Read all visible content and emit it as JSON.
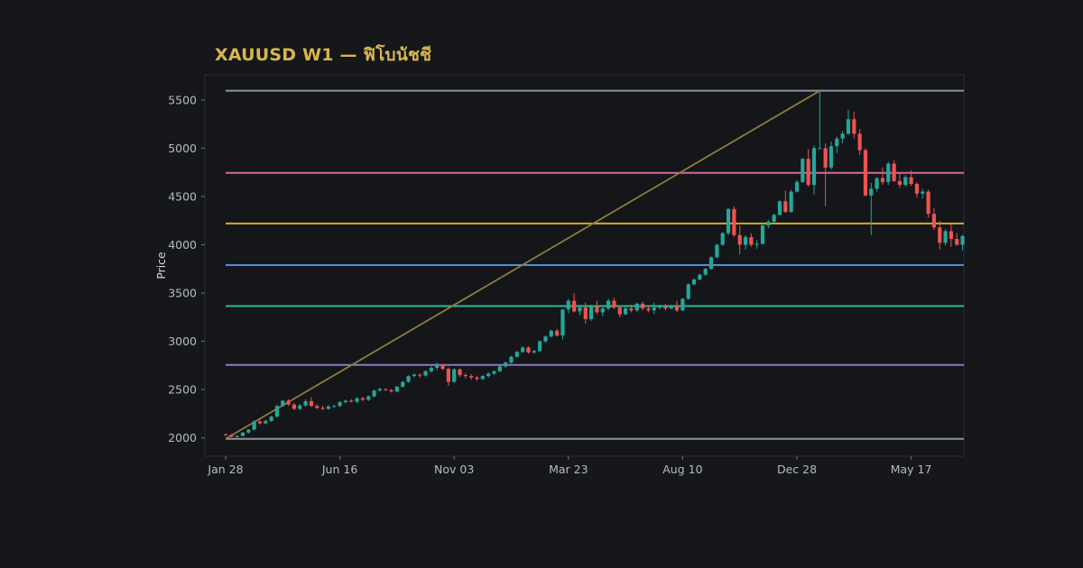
{
  "colors": {
    "background": "#15171b",
    "plot_background": "#14161a",
    "plot_border": "#2a2e37",
    "title": "#d9b64c",
    "up": "#26a69a",
    "down": "#ef5350",
    "diagonal": "#8f7c3c"
  },
  "chart_data": {
    "type": "candlestick",
    "title": "XAUUSD W1 — ฟิโบนัชชี",
    "xlabel": "",
    "ylabel": "Price",
    "ylim": [
      1810,
      5760
    ],
    "yticks": [
      2000,
      2500,
      3000,
      3500,
      4000,
      4500,
      5000,
      5500
    ],
    "xticks": [
      {
        "label": "Jan 28",
        "index": 0
      },
      {
        "label": "Jun 16",
        "index": 20
      },
      {
        "label": "Nov 03",
        "index": 40
      },
      {
        "label": "Mar 23",
        "index": 60
      },
      {
        "label": "Aug 10",
        "index": 80
      },
      {
        "label": "Dec 28",
        "index": 100
      },
      {
        "label": "May 17",
        "index": 120
      }
    ],
    "grid": false,
    "legend": "none",
    "fib_levels": [
      {
        "price": 5595,
        "color": "#8e939b"
      },
      {
        "price": 4745,
        "color": "#d9679a"
      },
      {
        "price": 4220,
        "color": "#d8a829"
      },
      {
        "price": 3790,
        "color": "#4a8fd8"
      },
      {
        "price": 3365,
        "color": "#2dba8c"
      },
      {
        "price": 2755,
        "color": "#8a78c8"
      },
      {
        "price": 1990,
        "color": "#8e939b"
      }
    ],
    "trendline": {
      "from": {
        "index": 0,
        "price": 1990
      },
      "to": {
        "index": 104,
        "price": 5595
      }
    },
    "candles": [
      [
        2035,
        2048,
        2022,
        2030
      ],
      [
        2030,
        2040,
        2005,
        2010
      ],
      [
        2010,
        2025,
        1995,
        2020
      ],
      [
        2020,
        2060,
        2015,
        2055
      ],
      [
        2055,
        2090,
        2045,
        2085
      ],
      [
        2085,
        2180,
        2080,
        2170
      ],
      [
        2170,
        2185,
        2140,
        2150
      ],
      [
        2150,
        2190,
        2140,
        2175
      ],
      [
        2175,
        2230,
        2165,
        2220
      ],
      [
        2220,
        2340,
        2215,
        2330
      ],
      [
        2330,
        2395,
        2320,
        2385
      ],
      [
        2385,
        2400,
        2330,
        2345
      ],
      [
        2345,
        2365,
        2290,
        2300
      ],
      [
        2300,
        2350,
        2290,
        2335
      ],
      [
        2335,
        2400,
        2320,
        2380
      ],
      [
        2380,
        2420,
        2320,
        2330
      ],
      [
        2330,
        2350,
        2300,
        2310
      ],
      [
        2310,
        2335,
        2290,
        2300
      ],
      [
        2300,
        2340,
        2290,
        2325
      ],
      [
        2325,
        2345,
        2310,
        2330
      ],
      [
        2330,
        2380,
        2320,
        2370
      ],
      [
        2370,
        2395,
        2355,
        2385
      ],
      [
        2385,
        2400,
        2365,
        2375
      ],
      [
        2375,
        2420,
        2360,
        2410
      ],
      [
        2410,
        2425,
        2380,
        2395
      ],
      [
        2395,
        2440,
        2380,
        2430
      ],
      [
        2430,
        2500,
        2420,
        2490
      ],
      [
        2490,
        2520,
        2480,
        2505
      ],
      [
        2505,
        2515,
        2485,
        2495
      ],
      [
        2495,
        2505,
        2470,
        2480
      ],
      [
        2480,
        2540,
        2470,
        2530
      ],
      [
        2530,
        2590,
        2520,
        2580
      ],
      [
        2580,
        2650,
        2570,
        2640
      ],
      [
        2640,
        2670,
        2625,
        2655
      ],
      [
        2655,
        2665,
        2620,
        2645
      ],
      [
        2645,
        2700,
        2635,
        2690
      ],
      [
        2690,
        2740,
        2675,
        2725
      ],
      [
        2725,
        2780,
        2700,
        2755
      ],
      [
        2755,
        2760,
        2700,
        2715
      ],
      [
        2715,
        2730,
        2540,
        2580
      ],
      [
        2580,
        2720,
        2570,
        2710
      ],
      [
        2710,
        2720,
        2630,
        2650
      ],
      [
        2650,
        2670,
        2615,
        2640
      ],
      [
        2640,
        2660,
        2600,
        2625
      ],
      [
        2625,
        2645,
        2590,
        2610
      ],
      [
        2610,
        2650,
        2600,
        2640
      ],
      [
        2640,
        2680,
        2625,
        2665
      ],
      [
        2665,
        2700,
        2650,
        2690
      ],
      [
        2690,
        2750,
        2680,
        2740
      ],
      [
        2740,
        2790,
        2725,
        2780
      ],
      [
        2780,
        2850,
        2770,
        2840
      ],
      [
        2840,
        2900,
        2830,
        2890
      ],
      [
        2890,
        2950,
        2880,
        2935
      ],
      [
        2935,
        2950,
        2870,
        2885
      ],
      [
        2885,
        2910,
        2870,
        2900
      ],
      [
        2900,
        3010,
        2890,
        3000
      ],
      [
        3000,
        3060,
        2985,
        3050
      ],
      [
        3050,
        3120,
        3040,
        3110
      ],
      [
        3110,
        3130,
        3050,
        3060
      ],
      [
        3060,
        3330,
        3020,
        3330
      ],
      [
        3330,
        3440,
        3290,
        3420
      ],
      [
        3420,
        3500,
        3300,
        3310
      ],
      [
        3310,
        3380,
        3270,
        3350
      ],
      [
        3350,
        3400,
        3180,
        3230
      ],
      [
        3230,
        3380,
        3210,
        3360
      ],
      [
        3360,
        3420,
        3280,
        3300
      ],
      [
        3300,
        3350,
        3260,
        3340
      ],
      [
        3340,
        3440,
        3320,
        3420
      ],
      [
        3420,
        3450,
        3330,
        3350
      ],
      [
        3350,
        3370,
        3250,
        3280
      ],
      [
        3280,
        3360,
        3270,
        3340
      ],
      [
        3340,
        3380,
        3300,
        3320
      ],
      [
        3320,
        3400,
        3300,
        3390
      ],
      [
        3390,
        3410,
        3320,
        3340
      ],
      [
        3340,
        3360,
        3300,
        3320
      ],
      [
        3320,
        3400,
        3280,
        3350
      ],
      [
        3350,
        3380,
        3330,
        3360
      ],
      [
        3360,
        3390,
        3320,
        3340
      ],
      [
        3340,
        3380,
        3330,
        3370
      ],
      [
        3370,
        3420,
        3300,
        3320
      ],
      [
        3320,
        3450,
        3310,
        3440
      ],
      [
        3440,
        3600,
        3430,
        3590
      ],
      [
        3590,
        3650,
        3580,
        3640
      ],
      [
        3640,
        3700,
        3630,
        3690
      ],
      [
        3690,
        3760,
        3680,
        3750
      ],
      [
        3750,
        3880,
        3740,
        3870
      ],
      [
        3870,
        4010,
        3860,
        4000
      ],
      [
        4000,
        4130,
        3990,
        4120
      ],
      [
        4120,
        4380,
        4100,
        4370
      ],
      [
        4370,
        4400,
        4080,
        4100
      ],
      [
        4100,
        4200,
        3900,
        4000
      ],
      [
        4000,
        4100,
        3950,
        4080
      ],
      [
        4080,
        4120,
        3980,
        4000
      ],
      [
        4000,
        4050,
        3960,
        4010
      ],
      [
        4010,
        4220,
        4000,
        4200
      ],
      [
        4200,
        4260,
        4170,
        4240
      ],
      [
        4240,
        4320,
        4230,
        4310
      ],
      [
        4310,
        4460,
        4300,
        4450
      ],
      [
        4450,
        4560,
        4330,
        4340
      ],
      [
        4340,
        4570,
        4330,
        4550
      ],
      [
        4550,
        4670,
        4540,
        4650
      ],
      [
        4650,
        4900,
        4640,
        4890
      ],
      [
        4890,
        4990,
        4600,
        4620
      ],
      [
        4620,
        5030,
        4520,
        5000
      ],
      [
        5000,
        5600,
        4990,
        5000
      ],
      [
        5000,
        5050,
        4400,
        4800
      ],
      [
        4800,
        5070,
        4780,
        5020
      ],
      [
        5020,
        5120,
        4950,
        5100
      ],
      [
        5100,
        5180,
        5050,
        5150
      ],
      [
        5150,
        5400,
        5140,
        5300
      ],
      [
        5300,
        5380,
        5100,
        5150
      ],
      [
        5150,
        5200,
        4930,
        4980
      ],
      [
        4980,
        5000,
        4500,
        4510
      ],
      [
        4510,
        4640,
        4100,
        4580
      ],
      [
        4580,
        4700,
        4550,
        4690
      ],
      [
        4690,
        4800,
        4620,
        4650
      ],
      [
        4650,
        4860,
        4620,
        4840
      ],
      [
        4840,
        4880,
        4650,
        4660
      ],
      [
        4660,
        4740,
        4590,
        4620
      ],
      [
        4620,
        4720,
        4600,
        4700
      ],
      [
        4700,
        4770,
        4610,
        4630
      ],
      [
        4630,
        4650,
        4490,
        4530
      ],
      [
        4530,
        4580,
        4480,
        4550
      ],
      [
        4550,
        4570,
        4280,
        4320
      ],
      [
        4320,
        4380,
        4150,
        4180
      ],
      [
        4180,
        4250,
        3950,
        4020
      ],
      [
        4020,
        4160,
        3990,
        4140
      ],
      [
        4140,
        4210,
        3980,
        4060
      ],
      [
        4060,
        4120,
        3990,
        4000
      ],
      [
        4000,
        4100,
        3940,
        4090
      ]
    ]
  }
}
